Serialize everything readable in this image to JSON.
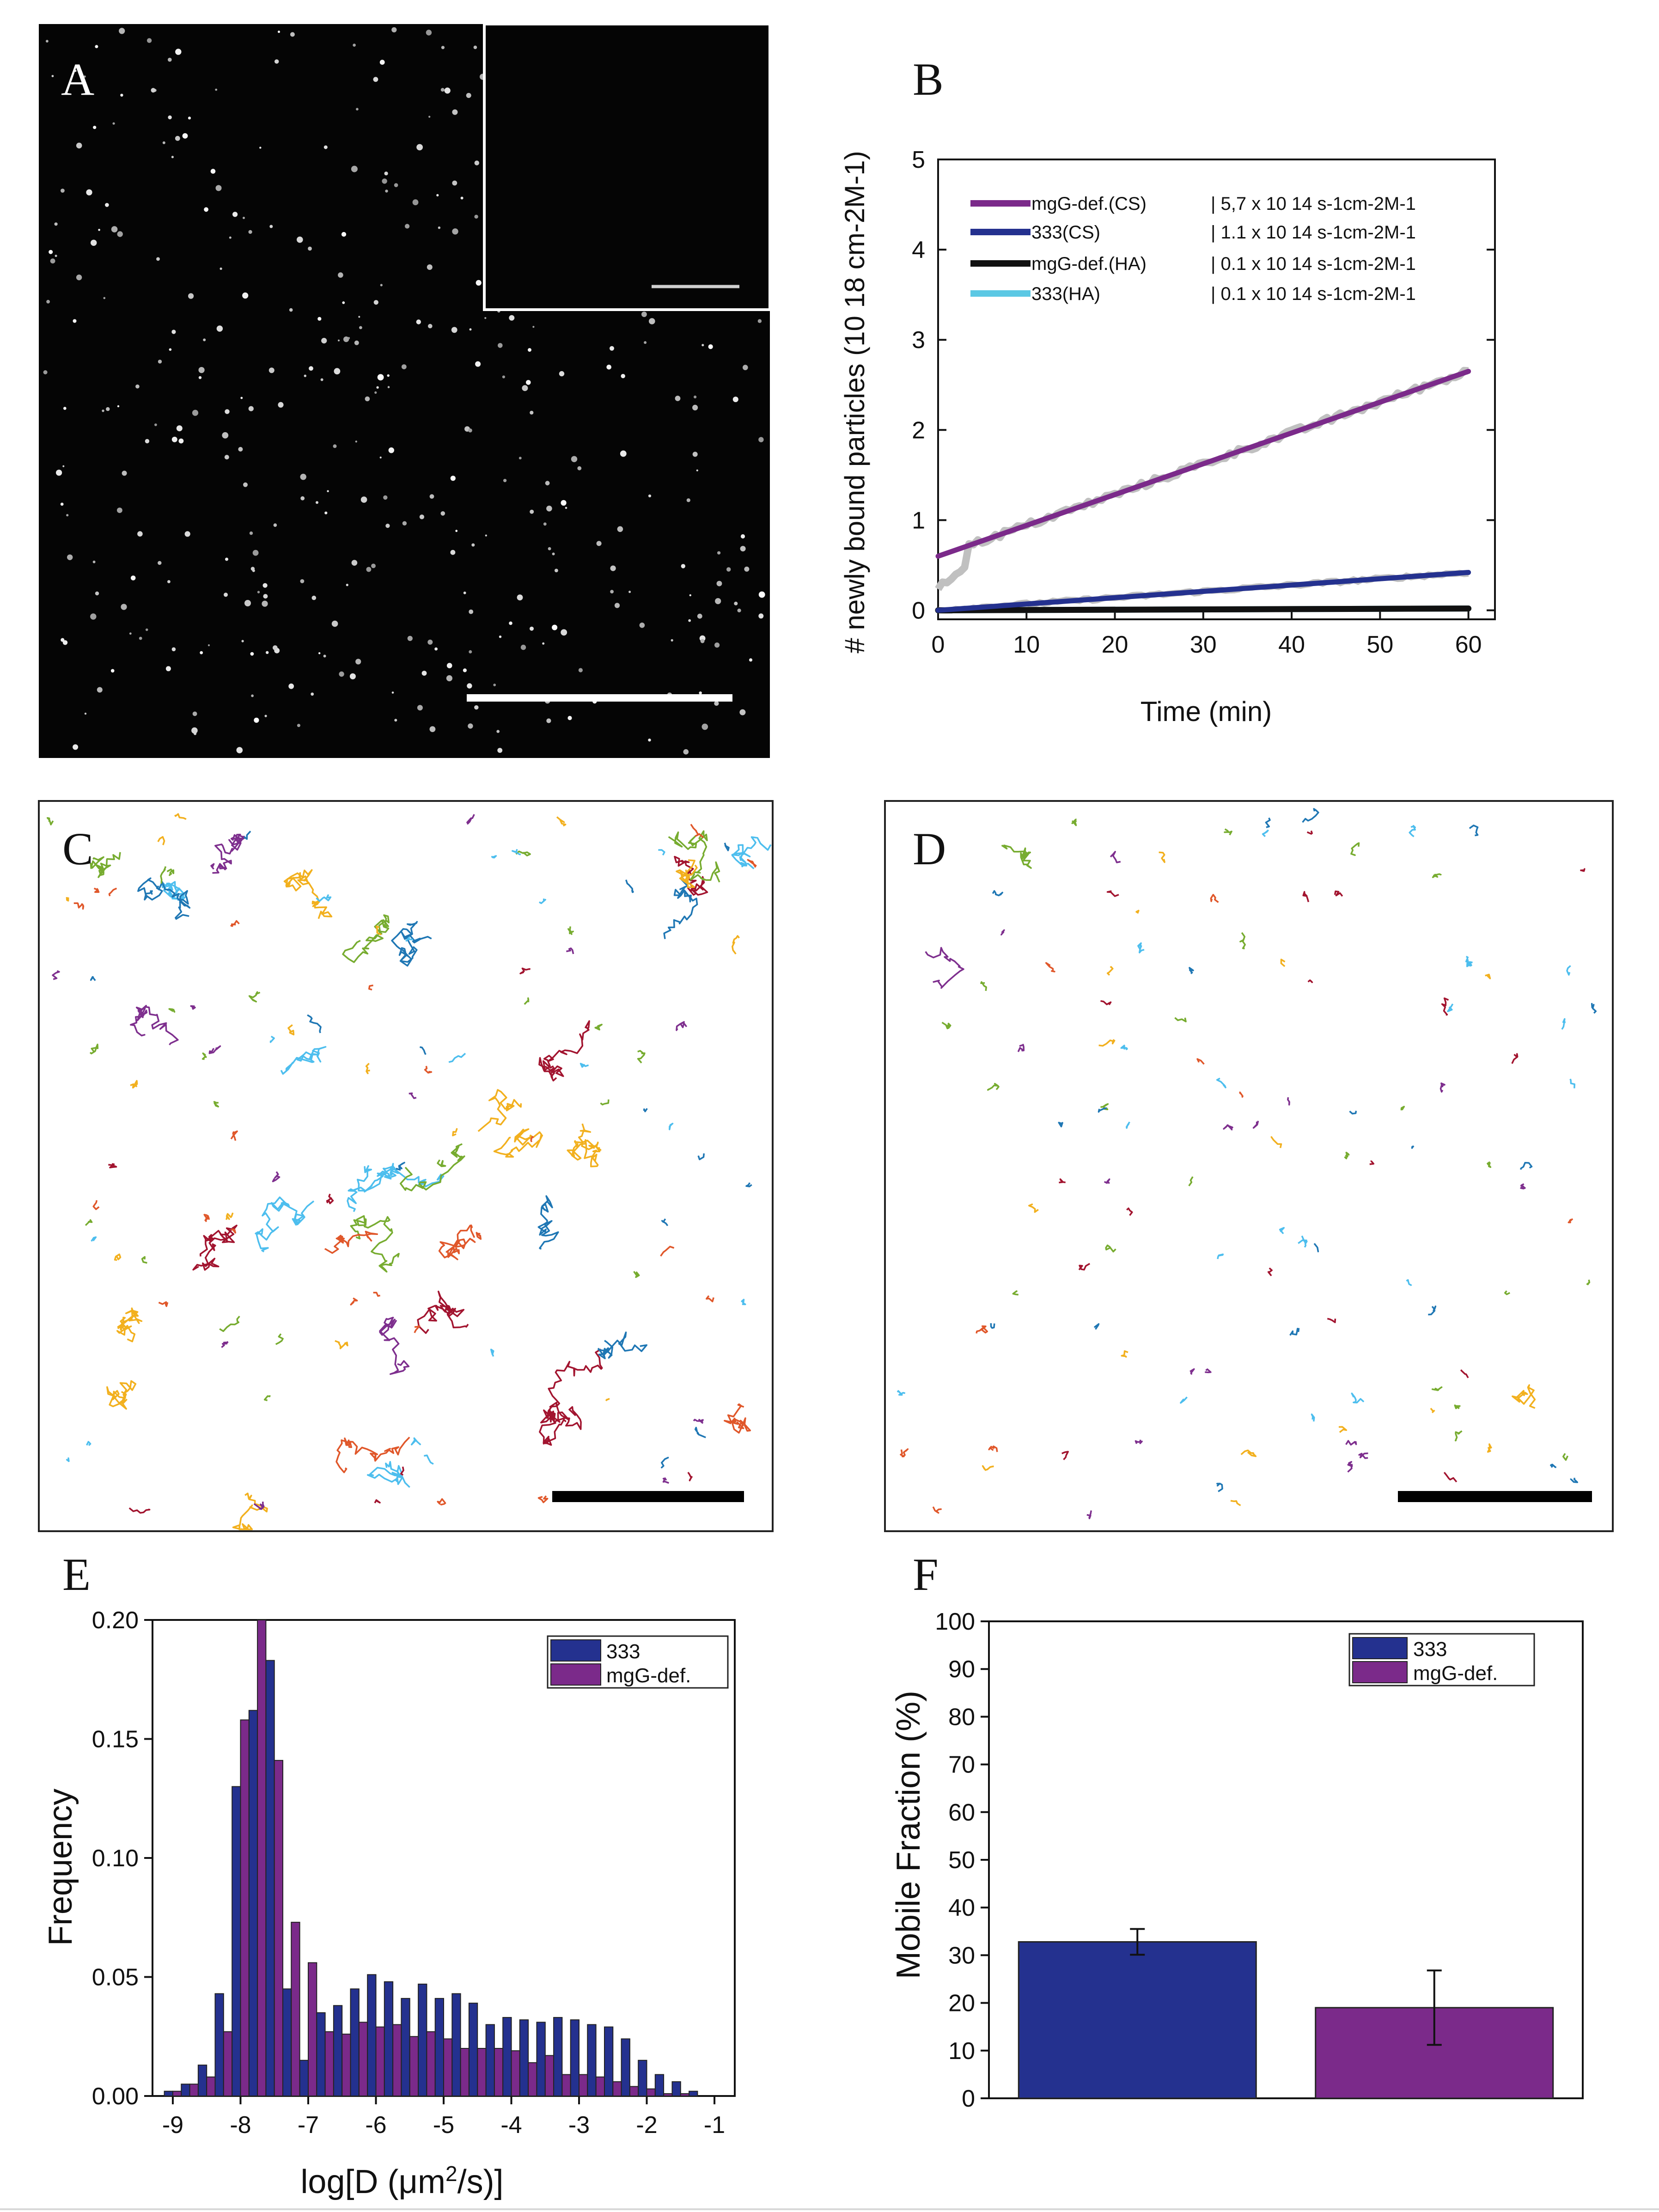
{
  "panels": {
    "a": "A",
    "b": "B",
    "c": "C",
    "d": "D",
    "e": "E",
    "f": "F"
  },
  "panel_b": {
    "xlabel": "Time (min)",
    "ylabel": "# newly bound particles (10 18 cm-2M-1)",
    "xticks": [
      "0",
      "10",
      "20",
      "30",
      "40",
      "50",
      "60"
    ],
    "yticks": [
      "0",
      "1",
      "2",
      "3",
      "4",
      "5"
    ],
    "legend": [
      {
        "name": "mgG-def.(CS)",
        "rate": "| 5,7 x 10 14 s-1cm-2M-1",
        "color": "#7b2a8a"
      },
      {
        "name": "333(CS)",
        "rate": "| 1.1 x 10 14 s-1cm-2M-1",
        "color": "#24318f"
      },
      {
        "name": "mgG-def.(HA)",
        "rate": "| 0.1 x 10 14 s-1cm-2M-1",
        "color": "#111111"
      },
      {
        "name": "333(HA)",
        "rate": "| 0.1 x 10 14 s-1cm-2M-1",
        "color": "#5bc8e4"
      }
    ]
  },
  "panel_e": {
    "xlabel": "log[D (μm2/s)]",
    "ylabel": "Frequency",
    "xticks": [
      "-9",
      "-8",
      "-7",
      "-6",
      "-5",
      "-4",
      "-3",
      "-2",
      "-1"
    ],
    "yticks": [
      "0.00",
      "0.05",
      "0.10",
      "0.15",
      "0.20"
    ],
    "legend": [
      "333",
      "mgG-def."
    ]
  },
  "panel_f": {
    "ylabel": "Mobile Fraction (%)",
    "yticks": [
      "0",
      "10",
      "20",
      "30",
      "40",
      "50",
      "60",
      "70",
      "80",
      "90",
      "100"
    ],
    "legend": [
      "333",
      "mgG-def."
    ]
  },
  "colors": {
    "c333": "#24318f",
    "mgg": "#7b2a8a",
    "ha333": "#5bc8e4",
    "haMgg": "#111111",
    "fitGray": "#c0c0c0"
  },
  "chart_data": [
    {
      "type": "line",
      "title": "B",
      "xlabel": "Time (min)",
      "ylabel": "# newly bound particles (10^18 cm^-2 M^-1)",
      "xlim": [
        0,
        63
      ],
      "ylim": [
        -0.1,
        5
      ],
      "series": [
        {
          "name": "mgG-def.(CS)",
          "x": [
            0,
            60
          ],
          "y": [
            0.6,
            2.65
          ]
        },
        {
          "name": "333(CS)",
          "x": [
            0,
            60
          ],
          "y": [
            0.0,
            0.42
          ]
        },
        {
          "name": "mgG-def.(HA)",
          "x": [
            0,
            60
          ],
          "y": [
            0.0,
            0.02
          ]
        },
        {
          "name": "333(HA)",
          "x": [
            0,
            60
          ],
          "y": [
            0.0,
            0.02
          ]
        }
      ]
    },
    {
      "type": "bar",
      "title": "E",
      "xlabel": "log[D (μm2/s)]",
      "ylabel": "Frequency",
      "xlim": [
        -9.3,
        -0.7
      ],
      "ylim": [
        0,
        0.2
      ],
      "x": [
        -9.0,
        -8.75,
        -8.5,
        -8.25,
        -8.0,
        -7.75,
        -7.5,
        -7.25,
        -7.0,
        -6.75,
        -6.5,
        -6.25,
        -6.0,
        -5.75,
        -5.5,
        -5.25,
        -5.0,
        -4.75,
        -4.5,
        -4.25,
        -4.0,
        -3.75,
        -3.5,
        -3.25,
        -3.0,
        -2.75,
        -2.5,
        -2.25,
        -2.0,
        -1.75,
        -1.5,
        -1.25
      ],
      "series": [
        {
          "name": "333",
          "values": [
            0.002,
            0.005,
            0.013,
            0.043,
            0.13,
            0.162,
            0.183,
            0.045,
            0.015,
            0.035,
            0.038,
            0.045,
            0.051,
            0.048,
            0.041,
            0.047,
            0.041,
            0.043,
            0.039,
            0.03,
            0.033,
            0.032,
            0.031,
            0.033,
            0.032,
            0.03,
            0.029,
            0.024,
            0.015,
            0.009,
            0.006,
            0.002
          ]
        },
        {
          "name": "mgG-def.",
          "values": [
            0.002,
            0.005,
            0.008,
            0.027,
            0.158,
            0.2,
            0.141,
            0.073,
            0.056,
            0.027,
            0.026,
            0.031,
            0.029,
            0.03,
            0.025,
            0.027,
            0.024,
            0.02,
            0.02,
            0.02,
            0.019,
            0.014,
            0.017,
            0.009,
            0.009,
            0.008,
            0.006,
            0.004,
            0.003,
            0.001,
            0.001,
            0.0
          ]
        }
      ]
    },
    {
      "type": "bar",
      "title": "F",
      "ylabel": "Mobile Fraction (%)",
      "ylim": [
        0,
        100
      ],
      "categories": [
        "333",
        "mgG-def."
      ],
      "values": [
        32.8,
        19.0
      ],
      "errors": [
        2.7,
        7.8
      ]
    }
  ]
}
